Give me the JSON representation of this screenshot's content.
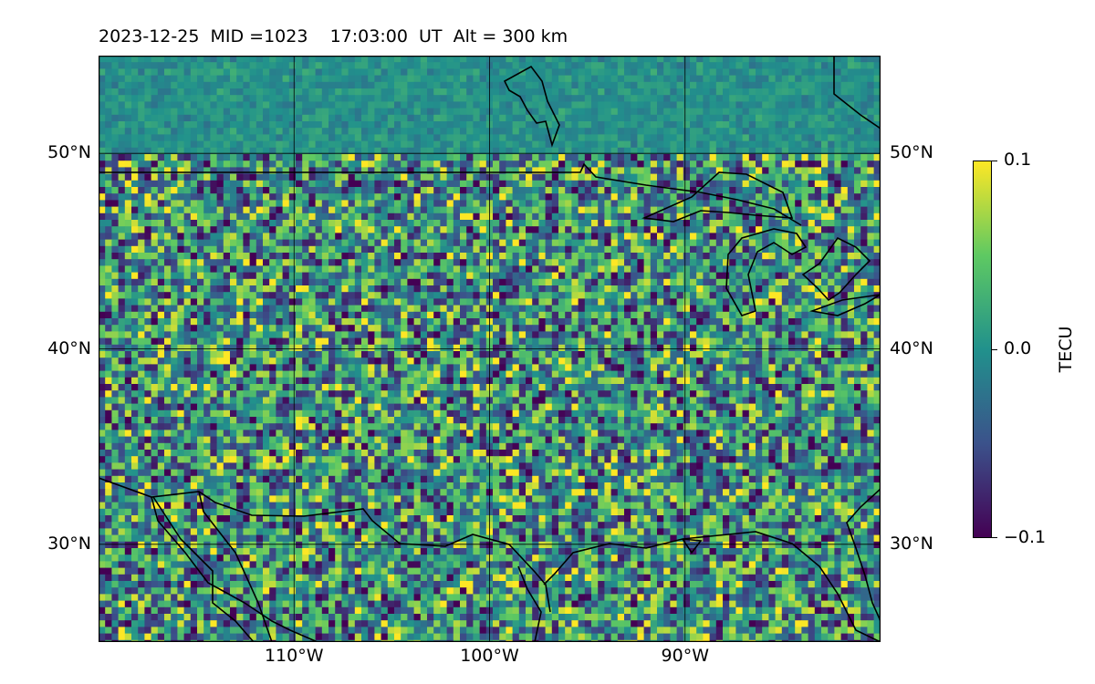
{
  "title": "2023-12-25  MID =1023    17:03:00  UT  Alt = 300 km",
  "map": {
    "extent": {
      "lon": [
        -120,
        -80
      ],
      "lat": [
        25,
        55
      ]
    },
    "lat_ticks": [
      {
        "value": 50,
        "label": "50°N"
      },
      {
        "value": 40,
        "label": "40°N"
      },
      {
        "value": 30,
        "label": "30°N"
      }
    ],
    "lon_ticks": [
      {
        "value": -110,
        "label": "110°W"
      },
      {
        "value": -100,
        "label": "100°W"
      },
      {
        "value": -90,
        "label": "90°W"
      }
    ],
    "gridlines": true,
    "coastline_color": "#000000",
    "field": "TEC perturbation (visually noisy, mostly near 0 with scattered yellow positive and purple negative cells)"
  },
  "colorbar": {
    "label": "TECU",
    "min": -0.1,
    "max": 0.1,
    "colormap": "viridis",
    "ticks": [
      {
        "value": 0.1,
        "label": "0.1"
      },
      {
        "value": 0.0,
        "label": "0.0"
      },
      {
        "value": -0.1,
        "label": "−0.1"
      }
    ],
    "colors": [
      "#440154",
      "#3b528b",
      "#21918c",
      "#5ec962",
      "#fde725"
    ]
  }
}
